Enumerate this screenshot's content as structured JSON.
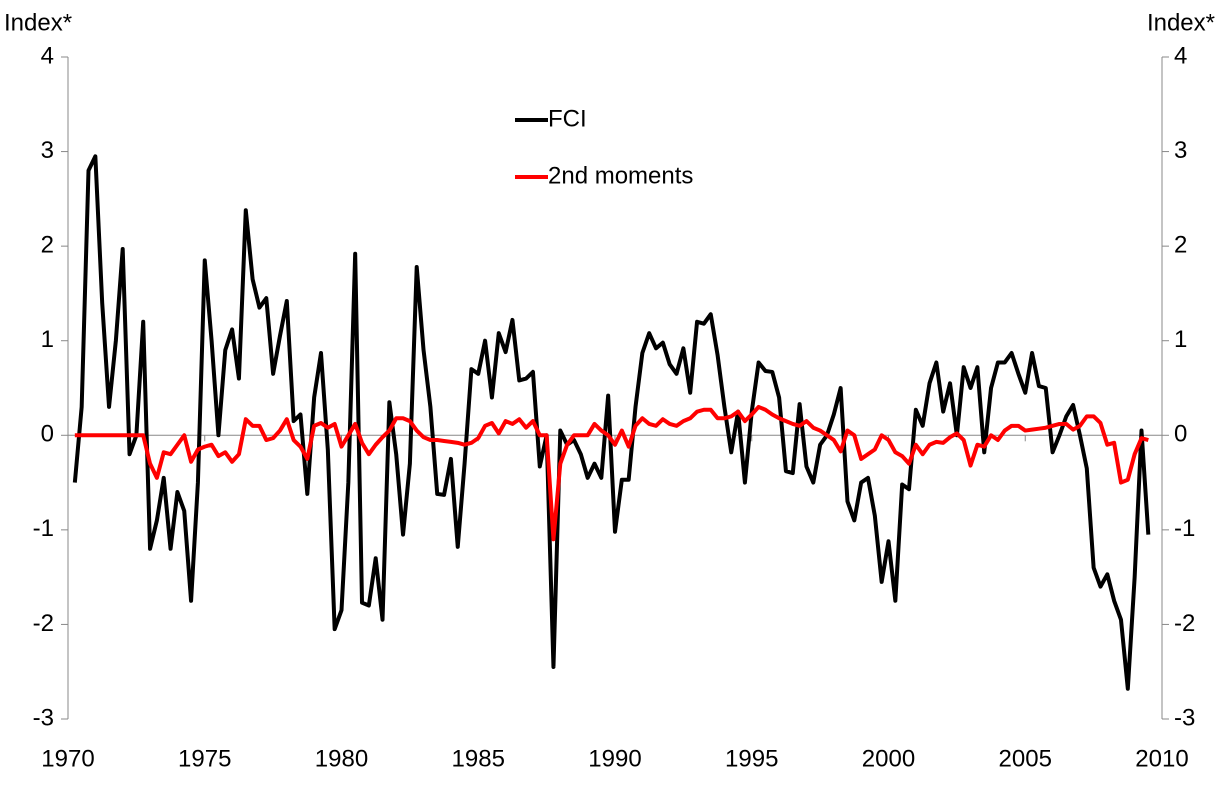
{
  "chart_data": {
    "type": "line",
    "y_label": "Index*",
    "y2_label": "Index*",
    "xlim": [
      1970,
      2010
    ],
    "xticks": [
      1970,
      1975,
      1980,
      1985,
      1990,
      1995,
      2000,
      2005,
      2010
    ],
    "ylim": [
      -3,
      4
    ],
    "yticks": [
      -3,
      -2,
      -1,
      0,
      1,
      2,
      3,
      4
    ],
    "y2lim": [
      -3,
      4
    ],
    "y2ticks": [
      -3,
      -2,
      -1,
      0,
      1,
      2,
      3,
      4
    ],
    "legend": "upper center",
    "x": [
      1970.25,
      1970.5,
      1970.75,
      1971,
      1971.25,
      1971.5,
      1971.75,
      1972,
      1972.25,
      1972.5,
      1972.75,
      1973,
      1973.25,
      1973.5,
      1973.75,
      1974,
      1974.25,
      1974.5,
      1974.75,
      1975,
      1975.25,
      1975.5,
      1975.75,
      1976,
      1976.25,
      1976.5,
      1976.75,
      1977,
      1977.25,
      1977.5,
      1977.75,
      1978,
      1978.25,
      1978.5,
      1978.75,
      1979,
      1979.25,
      1979.5,
      1979.75,
      1980,
      1980.25,
      1980.5,
      1980.75,
      1981,
      1981.25,
      1981.5,
      1981.75,
      1982,
      1982.25,
      1982.5,
      1982.75,
      1983,
      1983.25,
      1983.5,
      1983.75,
      1984,
      1984.25,
      1984.5,
      1984.75,
      1985,
      1985.25,
      1985.5,
      1985.75,
      1986,
      1986.25,
      1986.5,
      1986.75,
      1987,
      1987.25,
      1987.5,
      1987.75,
      1988,
      1988.25,
      1988.5,
      1988.75,
      1989,
      1989.25,
      1989.5,
      1989.75,
      1990,
      1990.25,
      1990.5,
      1990.75,
      1991,
      1991.25,
      1991.5,
      1991.75,
      1992,
      1992.25,
      1992.5,
      1992.75,
      1993,
      1993.25,
      1993.5,
      1993.75,
      1994,
      1994.25,
      1994.5,
      1994.75,
      1995,
      1995.25,
      1995.5,
      1995.75,
      1996,
      1996.25,
      1996.5,
      1996.75,
      1997,
      1997.25,
      1997.5,
      1997.75,
      1998,
      1998.25,
      1998.5,
      1998.75,
      1999,
      1999.25,
      1999.5,
      1999.75,
      2000,
      2000.25,
      2000.5,
      2000.75,
      2001,
      2001.25,
      2001.5,
      2001.75,
      2002,
      2002.25,
      2002.5,
      2002.75,
      2003,
      2003.25,
      2003.5,
      2003.75,
      2004,
      2004.25,
      2004.5,
      2004.75,
      2005,
      2005.25,
      2005.5,
      2005.75,
      2006,
      2006.25,
      2006.5,
      2006.75,
      2007,
      2007.25,
      2007.5,
      2007.75,
      2008,
      2008.25,
      2008.5,
      2008.75,
      2009,
      2009.25,
      2009.5
    ],
    "series": [
      {
        "name": "FCI",
        "color": "#000000",
        "values": [
          -0.5,
          0.3,
          2.8,
          2.95,
          1.4,
          0.3,
          1.0,
          1.97,
          -0.2,
          0.0,
          1.2,
          -1.2,
          -0.9,
          -0.45,
          -1.2,
          -0.6,
          -0.8,
          -1.75,
          -0.5,
          1.85,
          1.0,
          0.0,
          0.9,
          1.12,
          0.6,
          2.38,
          1.65,
          1.35,
          1.45,
          0.65,
          1.05,
          1.42,
          0.15,
          0.22,
          -0.62,
          0.4,
          0.87,
          -0.15,
          -2.05,
          -1.85,
          -0.5,
          1.92,
          -1.77,
          -1.8,
          -1.3,
          -1.95,
          0.35,
          -0.2,
          -1.05,
          -0.3,
          1.78,
          0.9,
          0.3,
          -0.62,
          -0.63,
          -0.25,
          -1.18,
          -0.3,
          0.7,
          0.65,
          1.0,
          0.4,
          1.08,
          0.88,
          1.22,
          0.58,
          0.6,
          0.67,
          -0.33,
          0.0,
          -2.45,
          0.05,
          -0.1,
          -0.05,
          -0.2,
          -0.45,
          -0.3,
          -0.45,
          0.42,
          -1.02,
          -0.47,
          -0.47,
          0.3,
          0.87,
          1.08,
          0.92,
          0.98,
          0.75,
          0.65,
          0.92,
          0.45,
          1.2,
          1.18,
          1.28,
          0.85,
          0.3,
          -0.18,
          0.25,
          -0.5,
          0.25,
          0.77,
          0.68,
          0.67,
          0.4,
          -0.38,
          -0.4,
          0.33,
          -0.33,
          -0.5,
          -0.1,
          0.0,
          0.22,
          0.5,
          -0.7,
          -0.9,
          -0.5,
          -0.45,
          -0.85,
          -1.55,
          -1.12,
          -1.75,
          -0.52,
          -0.57,
          0.27,
          0.1,
          0.55,
          0.77,
          0.25,
          0.55,
          0.0,
          0.72,
          0.5,
          0.72,
          -0.18,
          0.5,
          0.77,
          0.77,
          0.87,
          0.65,
          0.45,
          0.87,
          0.52,
          0.5,
          -0.18,
          0.0,
          0.2,
          0.32,
          0.0,
          -0.35,
          -1.4,
          -1.6,
          -1.47,
          -1.75,
          -1.95,
          -2.68,
          -1.5,
          0.05,
          -1.05
        ]
      },
      {
        "name": "2nd moments",
        "color": "#ff0000",
        "values": [
          0,
          0,
          0,
          0,
          0,
          0,
          0,
          0,
          0,
          0,
          0,
          -0.3,
          -0.45,
          -0.18,
          -0.2,
          -0.1,
          0.0,
          -0.28,
          -0.15,
          -0.12,
          -0.1,
          -0.22,
          -0.18,
          -0.28,
          -0.2,
          0.17,
          0.1,
          0.1,
          -0.05,
          -0.03,
          0.05,
          0.17,
          -0.05,
          -0.12,
          -0.25,
          0.1,
          0.13,
          0.08,
          0.12,
          -0.12,
          0.0,
          0.12,
          -0.08,
          -0.2,
          -0.1,
          -0.02,
          0.05,
          0.18,
          0.18,
          0.15,
          0.05,
          -0.02,
          -0.05,
          -0.05,
          -0.06,
          -0.07,
          -0.08,
          -0.1,
          -0.08,
          -0.03,
          0.1,
          0.13,
          0.02,
          0.15,
          0.12,
          0.17,
          0.08,
          0.15,
          0.0,
          0.0,
          -1.1,
          -0.3,
          -0.1,
          0.0,
          0.0,
          0.0,
          0.12,
          0.05,
          0.0,
          -0.1,
          0.05,
          -0.12,
          0.1,
          0.18,
          0.12,
          0.1,
          0.17,
          0.12,
          0.1,
          0.15,
          0.18,
          0.25,
          0.27,
          0.27,
          0.18,
          0.18,
          0.2,
          0.25,
          0.15,
          0.22,
          0.3,
          0.27,
          0.22,
          0.18,
          0.15,
          0.12,
          0.1,
          0.15,
          0.08,
          0.05,
          0.0,
          -0.05,
          -0.17,
          0.05,
          0.0,
          -0.25,
          -0.2,
          -0.15,
          0.0,
          -0.05,
          -0.18,
          -0.22,
          -0.3,
          -0.1,
          -0.2,
          -0.1,
          -0.07,
          -0.08,
          -0.02,
          0.02,
          -0.05,
          -0.32,
          -0.1,
          -0.12,
          0.0,
          -0.05,
          0.05,
          0.1,
          0.1,
          0.05,
          0.06,
          0.07,
          0.08,
          0.1,
          0.12,
          0.12,
          0.06,
          0.1,
          0.2,
          0.2,
          0.13,
          -0.1,
          -0.08,
          -0.5,
          -0.47,
          -0.2,
          -0.03,
          -0.05
        ]
      }
    ]
  }
}
